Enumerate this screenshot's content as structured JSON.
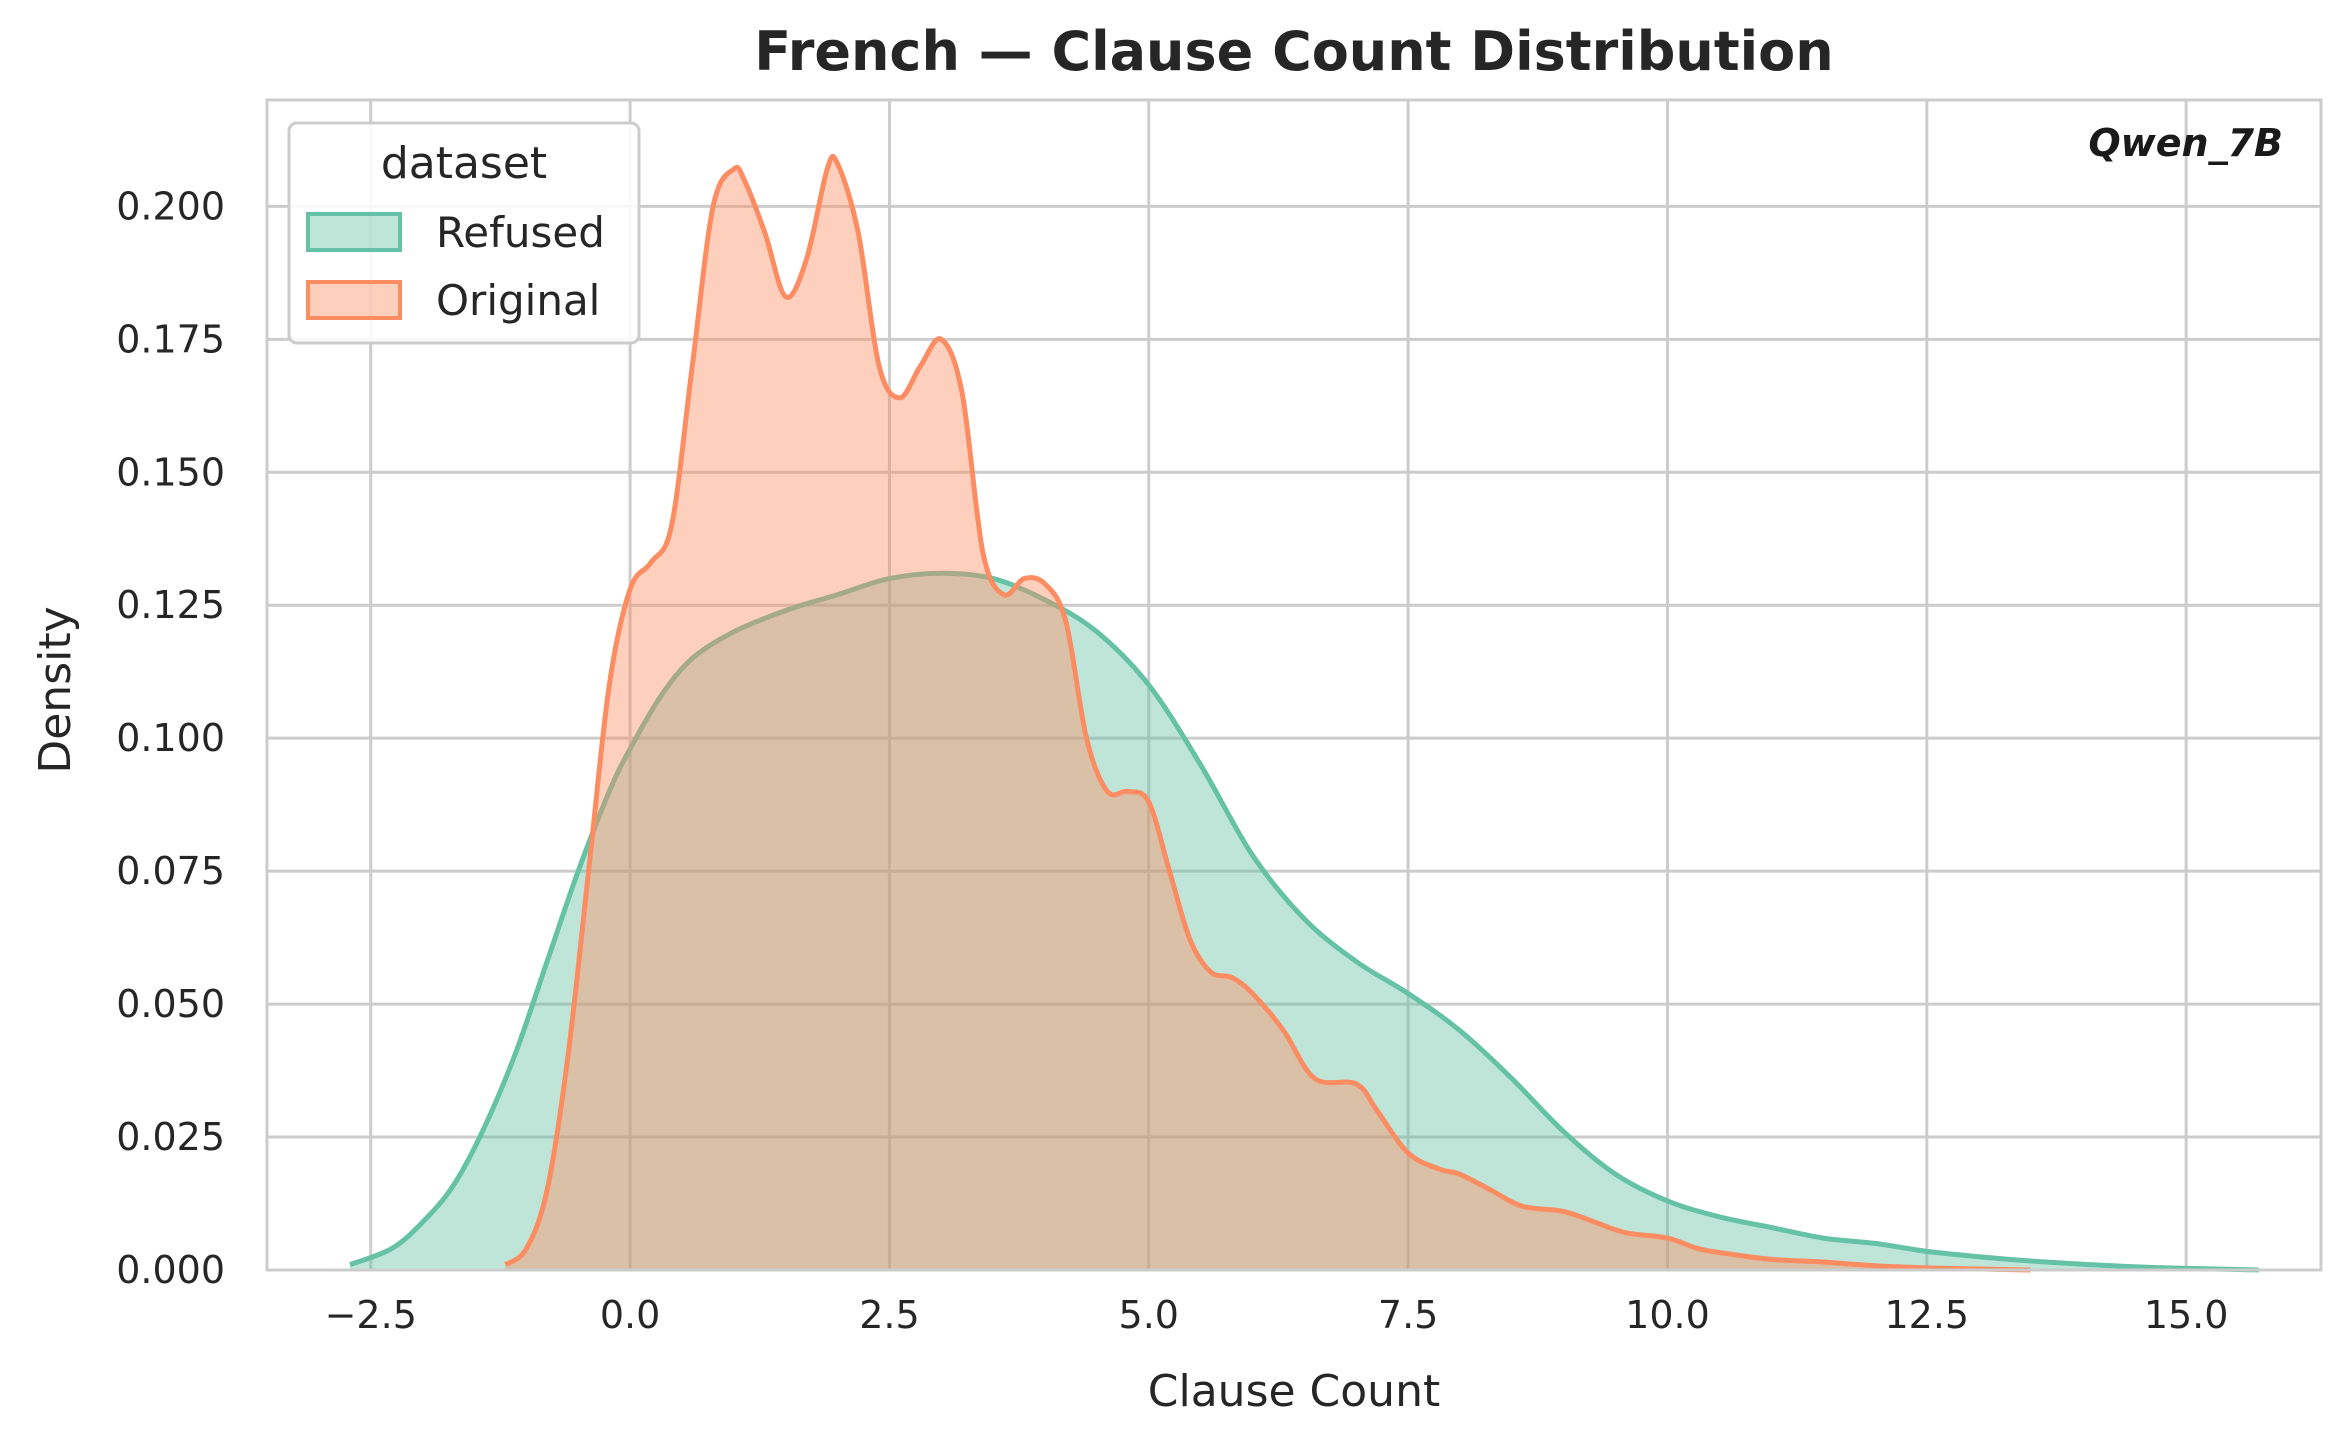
{
  "chart_data": {
    "type": "area",
    "title": "French — Clause Count Distribution",
    "xlabel": "Clause Count",
    "ylabel": "Density",
    "xlim": [
      -3.5,
      16.3
    ],
    "ylim": [
      0,
      0.22
    ],
    "x_ticks": [
      -2.5,
      0.0,
      2.5,
      5.0,
      7.5,
      10.0,
      12.5,
      15.0
    ],
    "x_tick_labels": [
      "−2.5",
      "0.0",
      "2.5",
      "5.0",
      "7.5",
      "10.0",
      "12.5",
      "15.0"
    ],
    "y_ticks": [
      0,
      0.025,
      0.05,
      0.075,
      0.1,
      0.125,
      0.15,
      0.175,
      0.2
    ],
    "y_tick_labels": [
      "0.000",
      "0.025",
      "0.050",
      "0.075",
      "0.100",
      "0.125",
      "0.150",
      "0.175",
      "0.200"
    ],
    "grid": true,
    "legend": {
      "title": "dataset",
      "placement": "top-left"
    },
    "annotation": "Qwen_7B",
    "series": [
      {
        "name": "Refused",
        "color": "#66c2a5",
        "x": [
          -2.7,
          -2.3,
          -2.0,
          -1.7,
          -1.4,
          -1.1,
          -0.8,
          -0.5,
          -0.2,
          0.0,
          0.3,
          0.6,
          1.0,
          1.5,
          2.0,
          2.5,
          3.0,
          3.5,
          4.0,
          4.5,
          5.0,
          5.5,
          6.0,
          6.5,
          7.0,
          7.5,
          8.0,
          8.5,
          9.0,
          9.5,
          10.0,
          10.5,
          11.0,
          11.5,
          12.0,
          12.5,
          13.0,
          13.5,
          14.0,
          14.5,
          15.0,
          15.5,
          15.7
        ],
        "y": [
          0.001,
          0.004,
          0.009,
          0.016,
          0.027,
          0.041,
          0.058,
          0.075,
          0.09,
          0.098,
          0.108,
          0.115,
          0.12,
          0.124,
          0.127,
          0.13,
          0.131,
          0.13,
          0.126,
          0.12,
          0.11,
          0.095,
          0.078,
          0.066,
          0.058,
          0.052,
          0.045,
          0.036,
          0.026,
          0.018,
          0.013,
          0.01,
          0.008,
          0.006,
          0.005,
          0.0035,
          0.0025,
          0.0017,
          0.0011,
          0.0006,
          0.0003,
          0.0001,
          0.0
        ]
      },
      {
        "name": "Original",
        "color": "#fc8d62",
        "x": [
          -1.2,
          -1.0,
          -0.8,
          -0.6,
          -0.4,
          -0.2,
          0.0,
          0.2,
          0.4,
          0.6,
          0.8,
          1.0,
          1.1,
          1.3,
          1.5,
          1.7,
          1.9,
          2.0,
          2.2,
          2.4,
          2.6,
          2.8,
          3.0,
          3.2,
          3.4,
          3.6,
          3.8,
          4.0,
          4.2,
          4.4,
          4.6,
          4.8,
          5.0,
          5.2,
          5.4,
          5.6,
          5.8,
          6.0,
          6.3,
          6.6,
          7.0,
          7.2,
          7.5,
          7.8,
          8.0,
          8.3,
          8.6,
          9.0,
          9.3,
          9.6,
          10.0,
          10.3,
          10.6,
          11.0,
          11.5,
          12.0,
          12.5,
          13.0,
          13.5
        ],
        "y": [
          0.001,
          0.004,
          0.015,
          0.04,
          0.075,
          0.11,
          0.128,
          0.133,
          0.14,
          0.17,
          0.2,
          0.207,
          0.205,
          0.195,
          0.183,
          0.19,
          0.207,
          0.208,
          0.195,
          0.17,
          0.164,
          0.17,
          0.175,
          0.165,
          0.135,
          0.127,
          0.13,
          0.129,
          0.122,
          0.1,
          0.09,
          0.09,
          0.088,
          0.075,
          0.062,
          0.056,
          0.055,
          0.052,
          0.045,
          0.036,
          0.035,
          0.03,
          0.022,
          0.019,
          0.018,
          0.015,
          0.012,
          0.011,
          0.009,
          0.007,
          0.006,
          0.004,
          0.003,
          0.002,
          0.0015,
          0.0008,
          0.0004,
          0.0002,
          0.0
        ]
      }
    ]
  }
}
